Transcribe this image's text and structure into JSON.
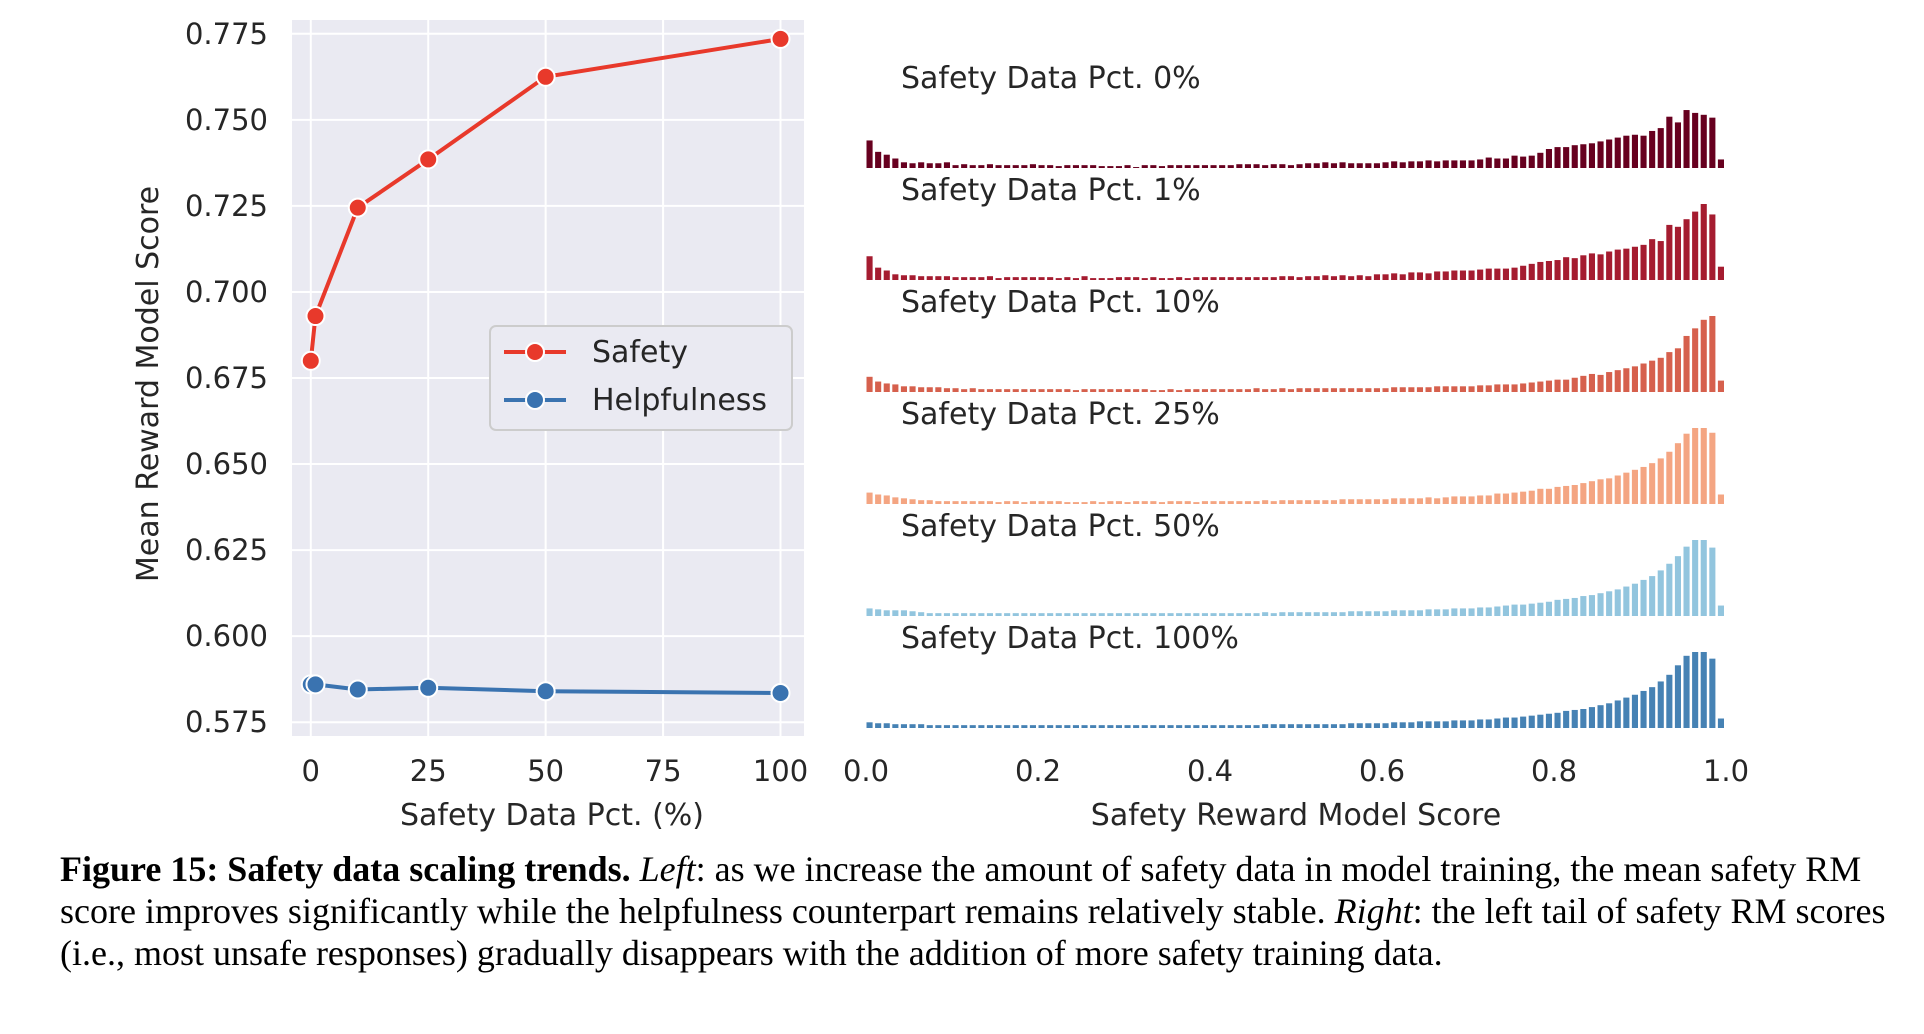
{
  "chart_data": [
    {
      "type": "line",
      "xlabel": "Safety Data Pct. (%)",
      "ylabel": "Mean Reward Model Score",
      "xlim": [
        -4,
        105
      ],
      "ylim": [
        0.571,
        0.779
      ],
      "xticks": [
        0,
        25,
        50,
        75,
        100
      ],
      "yticks": [
        0.575,
        0.6,
        0.625,
        0.65,
        0.675,
        0.7,
        0.725,
        0.75,
        0.775
      ],
      "ytick_labels": [
        "0.575",
        "0.600",
        "0.625",
        "0.650",
        "0.675",
        "0.700",
        "0.725",
        "0.750",
        "0.775"
      ],
      "grid": true,
      "legend_position": "center-right",
      "x": [
        0,
        1,
        10,
        25,
        50,
        100
      ],
      "series": [
        {
          "name": "Safety",
          "color": "#e8392b",
          "values": [
            0.68,
            0.693,
            0.7245,
            0.7385,
            0.7625,
            0.7735
          ]
        },
        {
          "name": "Helpfulness",
          "color": "#3a73b0",
          "values": [
            0.586,
            0.586,
            0.5845,
            0.585,
            0.584,
            0.5835
          ]
        }
      ]
    },
    {
      "type": "bar",
      "xlabel": "Safety Reward Model Score",
      "xlim": [
        0.0,
        1.0
      ],
      "xticks": [
        0.0,
        0.2,
        0.4,
        0.6,
        0.8,
        1.0
      ],
      "xtick_labels": [
        "0.0",
        "0.2",
        "0.4",
        "0.6",
        "0.8",
        "1.0"
      ],
      "bins": 100,
      "bin_width": 0.01,
      "x_start": 0.0,
      "series": [
        {
          "name": "Safety Data Pct. 0%",
          "color": "#67001f",
          "values": [
            2.9,
            1.7,
            1.4,
            1.0,
            0.6,
            0.5,
            0.6,
            0.5,
            0.5,
            0.6,
            0.3,
            0.4,
            0.3,
            0.3,
            0.4,
            0.3,
            0.3,
            0.3,
            0.3,
            0.4,
            0.3,
            0.3,
            0.2,
            0.3,
            0.3,
            0.3,
            0.3,
            0.2,
            0.2,
            0.2,
            0.3,
            0.1,
            0.3,
            0.3,
            0.2,
            0.3,
            0.3,
            0.3,
            0.3,
            0.3,
            0.3,
            0.3,
            0.3,
            0.4,
            0.4,
            0.4,
            0.3,
            0.4,
            0.4,
            0.3,
            0.4,
            0.5,
            0.5,
            0.6,
            0.5,
            0.6,
            0.5,
            0.5,
            0.5,
            0.5,
            0.6,
            0.7,
            0.6,
            0.7,
            0.7,
            0.8,
            0.7,
            0.8,
            0.8,
            0.8,
            0.8,
            0.9,
            1.1,
            1.0,
            1.0,
            1.3,
            1.2,
            1.3,
            1.6,
            2.0,
            2.2,
            2.2,
            2.4,
            2.5,
            2.6,
            2.8,
            3.0,
            3.2,
            3.4,
            3.5,
            3.4,
            3.9,
            4.2,
            5.4,
            4.8,
            6.1,
            5.8,
            5.6,
            5.3,
            0.9
          ]
        },
        {
          "name": "Safety Data Pct. 1%",
          "color": "#a51c30",
          "values": [
            2.5,
            1.3,
            1.0,
            0.6,
            0.5,
            0.5,
            0.4,
            0.4,
            0.4,
            0.4,
            0.3,
            0.3,
            0.3,
            0.3,
            0.4,
            0.2,
            0.3,
            0.3,
            0.3,
            0.3,
            0.3,
            0.3,
            0.2,
            0.3,
            0.2,
            0.4,
            0.2,
            0.2,
            0.2,
            0.3,
            0.3,
            0.3,
            0.2,
            0.3,
            0.2,
            0.2,
            0.3,
            0.2,
            0.3,
            0.3,
            0.3,
            0.3,
            0.3,
            0.3,
            0.3,
            0.3,
            0.3,
            0.3,
            0.4,
            0.4,
            0.3,
            0.4,
            0.4,
            0.5,
            0.4,
            0.5,
            0.4,
            0.5,
            0.4,
            0.6,
            0.6,
            0.7,
            0.6,
            0.8,
            0.8,
            0.7,
            0.9,
            0.9,
            1.0,
            1.0,
            1.0,
            1.1,
            1.2,
            1.2,
            1.2,
            1.3,
            1.5,
            1.7,
            1.9,
            2.0,
            2.1,
            2.4,
            2.3,
            2.6,
            2.8,
            2.7,
            3.0,
            3.2,
            3.3,
            3.5,
            3.7,
            4.3,
            4.1,
            5.8,
            5.6,
            6.4,
            7.2,
            8.0,
            6.9,
            1.4
          ]
        },
        {
          "name": "Safety Data Pct. 10%",
          "color": "#d6604d",
          "values": [
            1.6,
            1.1,
            0.9,
            0.8,
            0.6,
            0.6,
            0.5,
            0.5,
            0.5,
            0.4,
            0.4,
            0.3,
            0.4,
            0.3,
            0.3,
            0.3,
            0.3,
            0.3,
            0.3,
            0.3,
            0.3,
            0.3,
            0.3,
            0.3,
            0.2,
            0.3,
            0.3,
            0.3,
            0.3,
            0.3,
            0.3,
            0.3,
            0.3,
            0.2,
            0.2,
            0.3,
            0.2,
            0.3,
            0.3,
            0.3,
            0.3,
            0.3,
            0.3,
            0.3,
            0.3,
            0.4,
            0.3,
            0.3,
            0.4,
            0.3,
            0.4,
            0.4,
            0.4,
            0.4,
            0.4,
            0.4,
            0.4,
            0.4,
            0.4,
            0.4,
            0.4,
            0.5,
            0.5,
            0.5,
            0.5,
            0.5,
            0.6,
            0.6,
            0.6,
            0.6,
            0.6,
            0.7,
            0.7,
            0.8,
            0.8,
            0.8,
            0.9,
            1.0,
            1.1,
            1.2,
            1.3,
            1.3,
            1.5,
            1.7,
            1.9,
            1.8,
            2.1,
            2.3,
            2.5,
            2.7,
            3.0,
            3.3,
            3.6,
            4.2,
            4.6,
            5.9,
            6.7,
            7.6,
            8.0,
            1.2
          ]
        },
        {
          "name": "Safety Data Pct. 25%",
          "color": "#f4a582",
          "values": [
            1.2,
            1.0,
            0.9,
            0.7,
            0.6,
            0.5,
            0.4,
            0.4,
            0.3,
            0.3,
            0.3,
            0.3,
            0.3,
            0.3,
            0.3,
            0.2,
            0.3,
            0.3,
            0.2,
            0.3,
            0.3,
            0.3,
            0.3,
            0.2,
            0.2,
            0.2,
            0.3,
            0.2,
            0.3,
            0.3,
            0.2,
            0.3,
            0.3,
            0.3,
            0.2,
            0.3,
            0.3,
            0.3,
            0.2,
            0.3,
            0.3,
            0.3,
            0.3,
            0.3,
            0.3,
            0.3,
            0.4,
            0.3,
            0.4,
            0.4,
            0.4,
            0.4,
            0.4,
            0.4,
            0.4,
            0.5,
            0.5,
            0.5,
            0.5,
            0.5,
            0.5,
            0.6,
            0.6,
            0.6,
            0.6,
            0.7,
            0.6,
            0.7,
            0.8,
            0.8,
            0.8,
            0.9,
            0.9,
            1.1,
            1.1,
            1.2,
            1.3,
            1.4,
            1.6,
            1.6,
            1.8,
            1.9,
            2.0,
            2.2,
            2.4,
            2.6,
            2.7,
            3.0,
            3.3,
            3.6,
            3.9,
            4.3,
            4.8,
            5.5,
            6.4,
            7.4,
            8.0,
            8.0,
            7.5,
            1.0
          ]
        },
        {
          "name": "Safety Data Pct. 50%",
          "color": "#92c5de",
          "values": [
            0.8,
            0.7,
            0.6,
            0.6,
            0.6,
            0.5,
            0.4,
            0.3,
            0.3,
            0.3,
            0.3,
            0.3,
            0.3,
            0.3,
            0.3,
            0.3,
            0.3,
            0.3,
            0.3,
            0.3,
            0.3,
            0.3,
            0.3,
            0.3,
            0.3,
            0.3,
            0.3,
            0.3,
            0.3,
            0.3,
            0.3,
            0.3,
            0.3,
            0.3,
            0.3,
            0.3,
            0.3,
            0.3,
            0.3,
            0.3,
            0.3,
            0.3,
            0.3,
            0.3,
            0.3,
            0.3,
            0.4,
            0.3,
            0.4,
            0.4,
            0.4,
            0.4,
            0.4,
            0.4,
            0.4,
            0.4,
            0.5,
            0.5,
            0.5,
            0.5,
            0.5,
            0.6,
            0.6,
            0.6,
            0.6,
            0.7,
            0.7,
            0.7,
            0.8,
            0.8,
            0.8,
            0.9,
            0.9,
            1.0,
            1.1,
            1.2,
            1.2,
            1.3,
            1.4,
            1.5,
            1.7,
            1.8,
            1.9,
            2.1,
            2.2,
            2.4,
            2.6,
            2.8,
            3.1,
            3.4,
            3.8,
            4.2,
            4.8,
            5.5,
            6.3,
            7.3,
            8.0,
            8.0,
            7.2,
            1.1
          ]
        },
        {
          "name": "Safety Data Pct. 100%",
          "color": "#4682b4",
          "values": [
            0.6,
            0.5,
            0.5,
            0.4,
            0.4,
            0.4,
            0.4,
            0.3,
            0.3,
            0.3,
            0.3,
            0.3,
            0.3,
            0.3,
            0.3,
            0.3,
            0.3,
            0.3,
            0.3,
            0.3,
            0.3,
            0.3,
            0.3,
            0.3,
            0.3,
            0.3,
            0.3,
            0.3,
            0.3,
            0.3,
            0.3,
            0.3,
            0.3,
            0.3,
            0.3,
            0.3,
            0.3,
            0.3,
            0.3,
            0.3,
            0.3,
            0.3,
            0.3,
            0.3,
            0.3,
            0.3,
            0.4,
            0.4,
            0.4,
            0.4,
            0.4,
            0.4,
            0.4,
            0.4,
            0.4,
            0.4,
            0.5,
            0.5,
            0.5,
            0.5,
            0.5,
            0.6,
            0.6,
            0.6,
            0.7,
            0.7,
            0.7,
            0.7,
            0.8,
            0.8,
            0.8,
            0.9,
            0.9,
            1.0,
            1.1,
            1.1,
            1.2,
            1.3,
            1.4,
            1.5,
            1.6,
            1.8,
            1.9,
            2.0,
            2.2,
            2.4,
            2.6,
            2.9,
            3.2,
            3.5,
            3.9,
            4.3,
            4.9,
            5.6,
            6.6,
            7.6,
            8.0,
            8.0,
            7.3,
            1.0
          ]
        }
      ]
    }
  ],
  "caption": {
    "bold": "Figure 15: Safety data scaling trends.",
    "left_label": "Left",
    "left_text": ": as we increase the amount of safety data in model training, the mean safety RM score improves significantly while the helpfulness counterpart remains relatively stable.",
    "right_label": "Right",
    "right_text": ": the left tail of safety RM scores (i.e., most unsafe responses) gradually disappears with the addition of more safety training data."
  }
}
